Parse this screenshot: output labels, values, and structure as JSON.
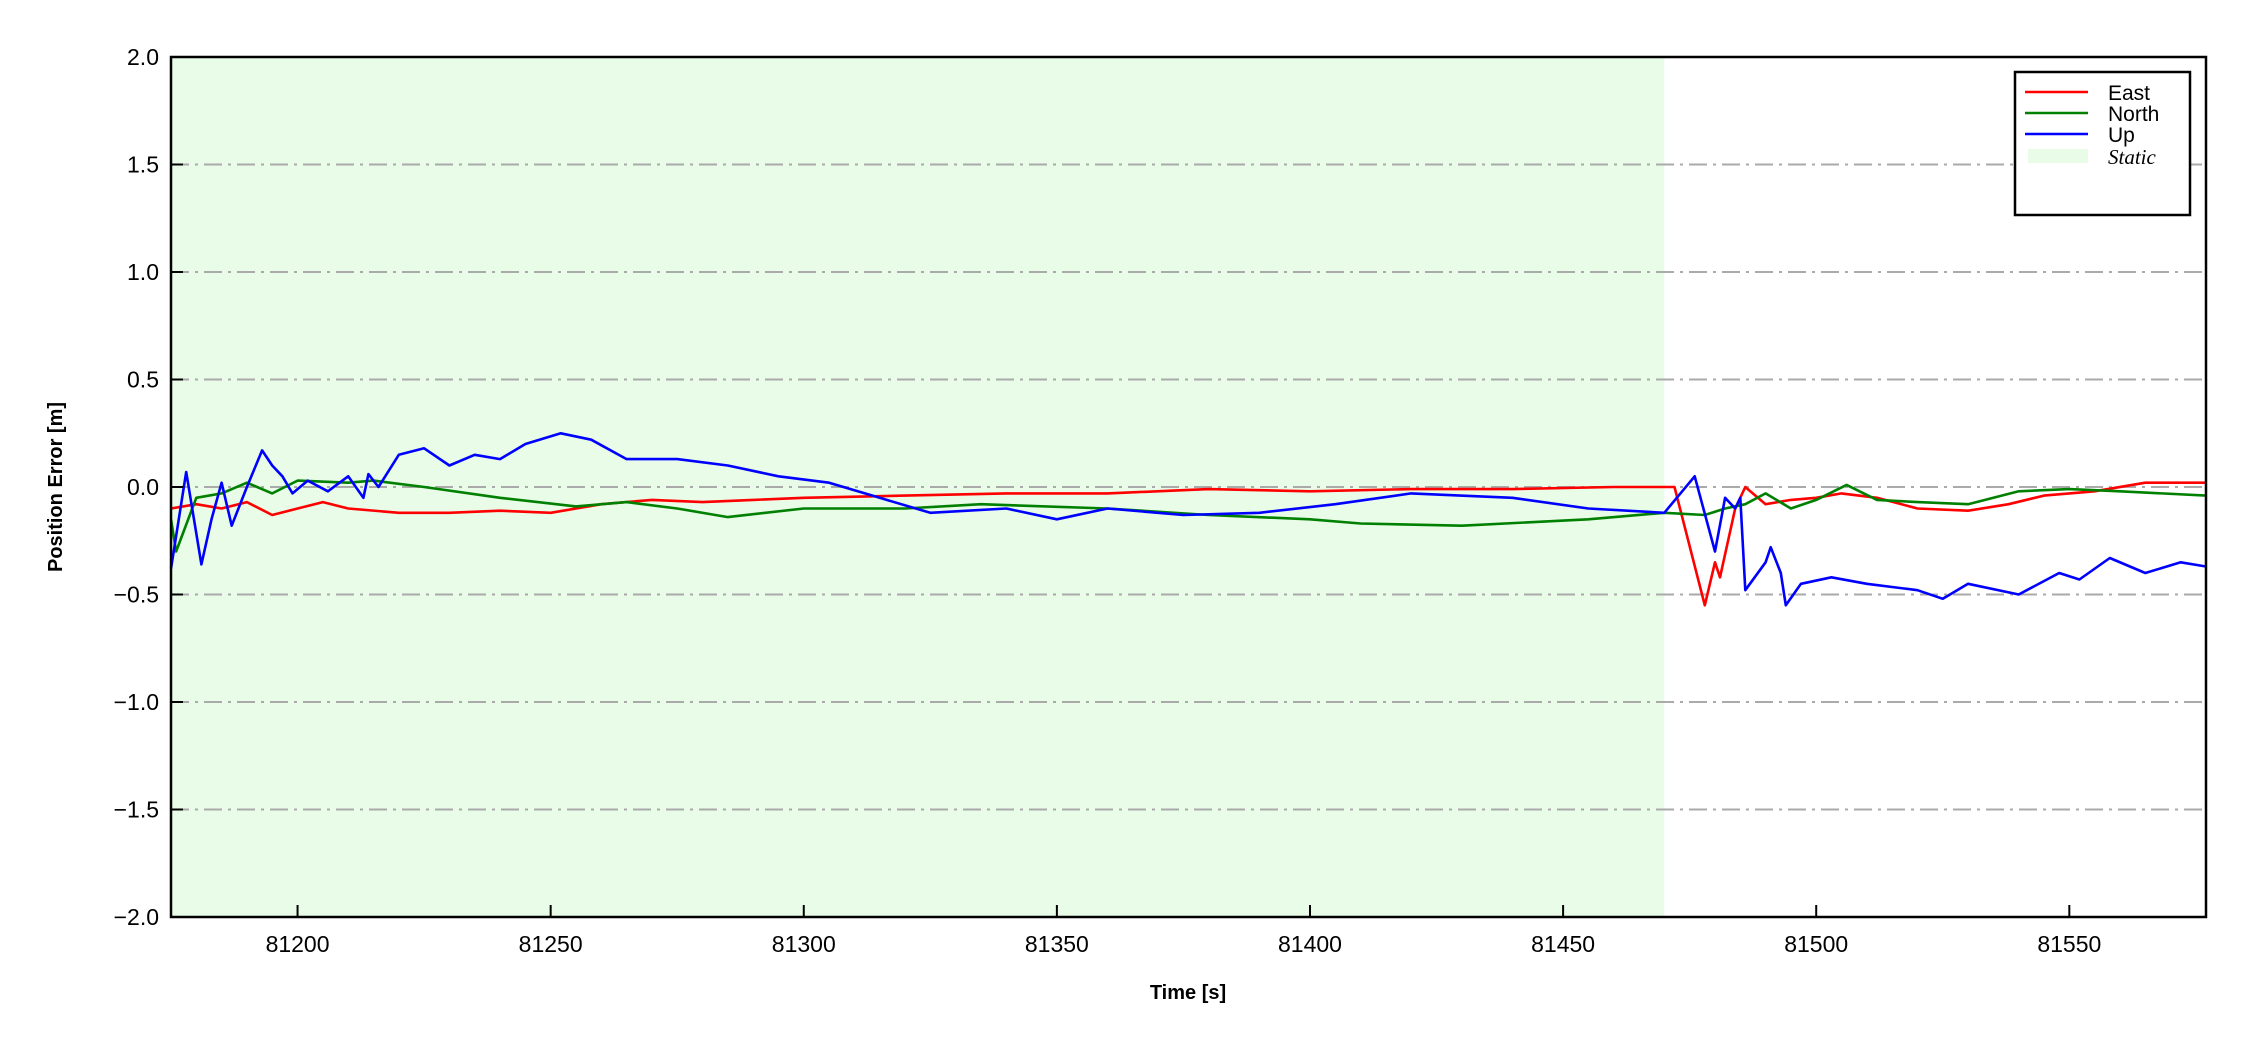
{
  "chart_data": {
    "type": "line",
    "title": "",
    "xlabel": "Time [s]",
    "ylabel": "Position Error [m]",
    "xlim": [
      81175,
      81577
    ],
    "ylim": [
      -2.0,
      2.0
    ],
    "xticks": [
      81200,
      81250,
      81300,
      81350,
      81400,
      81450,
      81500,
      81550
    ],
    "yticks": [
      -2.0,
      -1.5,
      -1.0,
      -0.5,
      0.0,
      0.5,
      1.0,
      1.5,
      2.0
    ],
    "ytick_labels": [
      "−2.0",
      "−1.5",
      "−1.0",
      "−0.5",
      "0.0",
      "0.5",
      "1.0",
      "1.5",
      "2.0"
    ],
    "grid": "horizontal dash-dot gray",
    "legend_position": "top-right",
    "shaded_region": {
      "name": "Static",
      "x": [
        81175,
        81470
      ],
      "color": "#e8fce8"
    },
    "series": [
      {
        "name": "East",
        "color": "#ff0000",
        "points": [
          [
            81175,
            -0.1
          ],
          [
            81180,
            -0.08
          ],
          [
            81185,
            -0.1
          ],
          [
            81190,
            -0.07
          ],
          [
            81195,
            -0.13
          ],
          [
            81200,
            -0.1
          ],
          [
            81205,
            -0.07
          ],
          [
            81210,
            -0.1
          ],
          [
            81220,
            -0.12
          ],
          [
            81230,
            -0.12
          ],
          [
            81240,
            -0.11
          ],
          [
            81250,
            -0.12
          ],
          [
            81260,
            -0.08
          ],
          [
            81270,
            -0.06
          ],
          [
            81280,
            -0.07
          ],
          [
            81290,
            -0.06
          ],
          [
            81300,
            -0.05
          ],
          [
            81320,
            -0.04
          ],
          [
            81340,
            -0.03
          ],
          [
            81360,
            -0.03
          ],
          [
            81380,
            -0.01
          ],
          [
            81400,
            -0.02
          ],
          [
            81420,
            -0.01
          ],
          [
            81440,
            -0.01
          ],
          [
            81460,
            0.0
          ],
          [
            81472,
            0.0
          ],
          [
            81478,
            -0.55
          ],
          [
            81480,
            -0.35
          ],
          [
            81481,
            -0.42
          ],
          [
            81484,
            -0.1
          ],
          [
            81486,
            0.0
          ],
          [
            81490,
            -0.08
          ],
          [
            81495,
            -0.06
          ],
          [
            81500,
            -0.05
          ],
          [
            81505,
            -0.03
          ],
          [
            81512,
            -0.05
          ],
          [
            81520,
            -0.1
          ],
          [
            81530,
            -0.11
          ],
          [
            81538,
            -0.08
          ],
          [
            81545,
            -0.04
          ],
          [
            81555,
            -0.02
          ],
          [
            81565,
            0.02
          ],
          [
            81577,
            0.02
          ]
        ]
      },
      {
        "name": "North",
        "color": "#008000",
        "points": [
          [
            81175,
            -0.15
          ],
          [
            81176,
            -0.3
          ],
          [
            81180,
            -0.05
          ],
          [
            81185,
            -0.03
          ],
          [
            81190,
            0.02
          ],
          [
            81195,
            -0.03
          ],
          [
            81200,
            0.03
          ],
          [
            81210,
            0.02
          ],
          [
            81215,
            0.03
          ],
          [
            81225,
            0.0
          ],
          [
            81240,
            -0.05
          ],
          [
            81255,
            -0.09
          ],
          [
            81265,
            -0.07
          ],
          [
            81275,
            -0.1
          ],
          [
            81285,
            -0.14
          ],
          [
            81300,
            -0.1
          ],
          [
            81320,
            -0.1
          ],
          [
            81335,
            -0.08
          ],
          [
            81360,
            -0.1
          ],
          [
            81380,
            -0.13
          ],
          [
            81400,
            -0.15
          ],
          [
            81410,
            -0.17
          ],
          [
            81430,
            -0.18
          ],
          [
            81455,
            -0.15
          ],
          [
            81470,
            -0.12
          ],
          [
            81478,
            -0.13
          ],
          [
            81482,
            -0.1
          ],
          [
            81486,
            -0.08
          ],
          [
            81490,
            -0.03
          ],
          [
            81495,
            -0.1
          ],
          [
            81500,
            -0.06
          ],
          [
            81506,
            0.01
          ],
          [
            81512,
            -0.06
          ],
          [
            81520,
            -0.07
          ],
          [
            81530,
            -0.08
          ],
          [
            81540,
            -0.02
          ],
          [
            81550,
            -0.01
          ],
          [
            81560,
            -0.02
          ],
          [
            81577,
            -0.04
          ]
        ]
      },
      {
        "name": "Up",
        "color": "#0000ff",
        "points": [
          [
            81175,
            -0.38
          ],
          [
            81178,
            0.07
          ],
          [
            81181,
            -0.36
          ],
          [
            81183,
            -0.15
          ],
          [
            81185,
            0.02
          ],
          [
            81187,
            -0.18
          ],
          [
            81190,
            0.0
          ],
          [
            81193,
            0.17
          ],
          [
            81195,
            0.1
          ],
          [
            81197,
            0.05
          ],
          [
            81199,
            -0.03
          ],
          [
            81202,
            0.03
          ],
          [
            81206,
            -0.02
          ],
          [
            81210,
            0.05
          ],
          [
            81213,
            -0.05
          ],
          [
            81214,
            0.06
          ],
          [
            81216,
            0.0
          ],
          [
            81220,
            0.15
          ],
          [
            81225,
            0.18
          ],
          [
            81230,
            0.1
          ],
          [
            81235,
            0.15
          ],
          [
            81240,
            0.13
          ],
          [
            81245,
            0.2
          ],
          [
            81252,
            0.25
          ],
          [
            81258,
            0.22
          ],
          [
            81265,
            0.13
          ],
          [
            81275,
            0.13
          ],
          [
            81285,
            0.1
          ],
          [
            81295,
            0.05
          ],
          [
            81305,
            0.02
          ],
          [
            81315,
            -0.05
          ],
          [
            81325,
            -0.12
          ],
          [
            81340,
            -0.1
          ],
          [
            81350,
            -0.15
          ],
          [
            81360,
            -0.1
          ],
          [
            81375,
            -0.13
          ],
          [
            81390,
            -0.12
          ],
          [
            81405,
            -0.08
          ],
          [
            81420,
            -0.03
          ],
          [
            81440,
            -0.05
          ],
          [
            81455,
            -0.1
          ],
          [
            81470,
            -0.12
          ],
          [
            81476,
            0.05
          ],
          [
            81480,
            -0.3
          ],
          [
            81482,
            -0.05
          ],
          [
            81484,
            -0.1
          ],
          [
            81485,
            -0.05
          ],
          [
            81486,
            -0.48
          ],
          [
            81490,
            -0.35
          ],
          [
            81491,
            -0.28
          ],
          [
            81493,
            -0.4
          ],
          [
            81494,
            -0.55
          ],
          [
            81497,
            -0.45
          ],
          [
            81503,
            -0.42
          ],
          [
            81510,
            -0.45
          ],
          [
            81520,
            -0.48
          ],
          [
            81525,
            -0.52
          ],
          [
            81530,
            -0.45
          ],
          [
            81540,
            -0.5
          ],
          [
            81548,
            -0.4
          ],
          [
            81552,
            -0.43
          ],
          [
            81558,
            -0.33
          ],
          [
            81565,
            -0.4
          ],
          [
            81572,
            -0.35
          ],
          [
            81577,
            -0.37
          ]
        ]
      }
    ]
  }
}
